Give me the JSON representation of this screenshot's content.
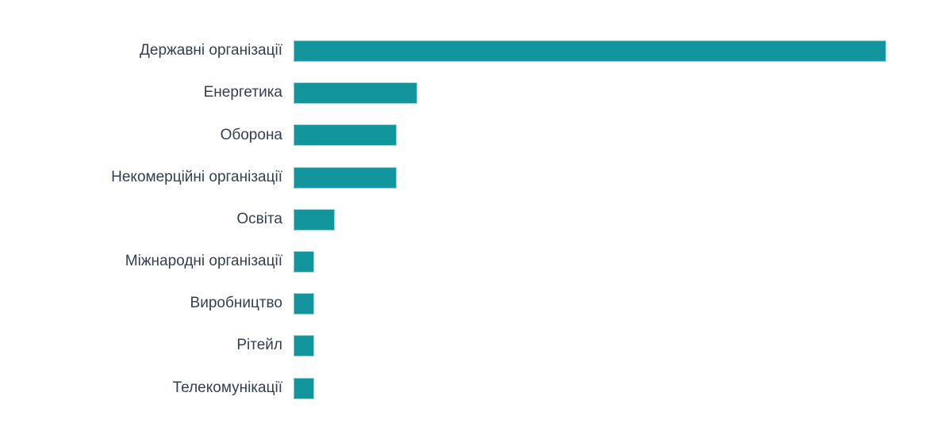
{
  "chart_data": {
    "type": "bar",
    "orientation": "horizontal",
    "title": "",
    "xlabel": "",
    "ylabel": "",
    "grid": false,
    "legend": "none",
    "axes_visible": false,
    "value_labels_visible": false,
    "categories": [
      "Державні організації",
      "Енергетика",
      "Оборона",
      "Некомерційні організації",
      "Освіта",
      "Міжнародні організації",
      "Виробництво",
      "Рітейл",
      "Телекомунікації"
    ],
    "values": [
      86,
      18,
      15,
      15,
      6,
      3,
      3,
      3,
      3
    ],
    "values_note": "estimated from bar pixel lengths; no numeric axis shown",
    "xlim": [
      0,
      92
    ]
  },
  "colors": {
    "bar_fill": "#13959E",
    "bar_edge": "#8FCFD4",
    "label_text": "#333F50",
    "background": "#FFFFFF"
  }
}
